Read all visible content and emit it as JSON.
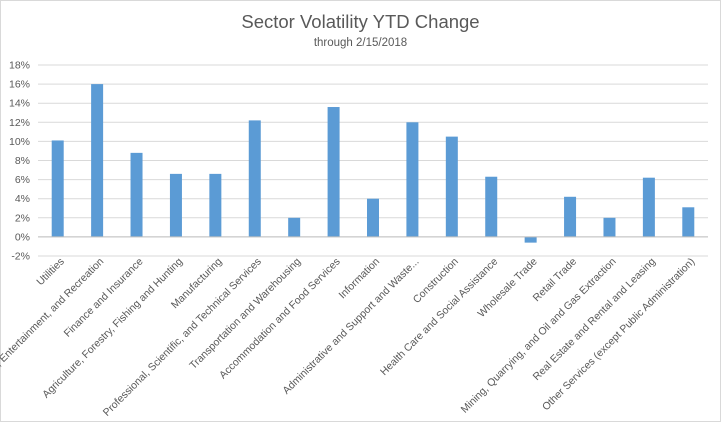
{
  "chart_data": {
    "type": "bar",
    "title": "Sector Volatility YTD Change",
    "subtitle": "through 2/15/2018",
    "xlabel": "",
    "ylabel": "",
    "ylim": [
      -2,
      18
    ],
    "y_ticks": [
      "-2%",
      "0%",
      "2%",
      "4%",
      "6%",
      "8%",
      "10%",
      "12%",
      "14%",
      "16%",
      "18%"
    ],
    "y_tick_values": [
      -2,
      0,
      2,
      4,
      6,
      8,
      10,
      12,
      14,
      16,
      18
    ],
    "categories": [
      "Utilities",
      "Arts, Entertainment, and Recreation",
      "Finance and Insurance",
      "Agriculture, Forestry, Fishing and Hunting",
      "Manufacturing",
      "Professional, Scientific, and Technical Services",
      "Transportation and Warehousing",
      "Accommodation and Food Services",
      "Information",
      "Administrative and Support and Waste...",
      "Construction",
      "Health Care and Social Assistance",
      "Wholesale Trade",
      "Retail Trade",
      "Mining, Quarrying, and Oil and Gas Extraction",
      "Real Estate and Rental and Leasing",
      "Other Services (except Public Administration)"
    ],
    "values": [
      10.1,
      16.0,
      8.8,
      6.6,
      6.6,
      12.2,
      2.0,
      13.6,
      4.0,
      12.0,
      10.5,
      6.3,
      -0.6,
      4.2,
      2.0,
      6.2,
      3.1
    ],
    "grid": true,
    "legend": "none",
    "bar_color": "#5b9bd5",
    "grid_color": "#d9d9d9",
    "text_color": "#595959"
  }
}
